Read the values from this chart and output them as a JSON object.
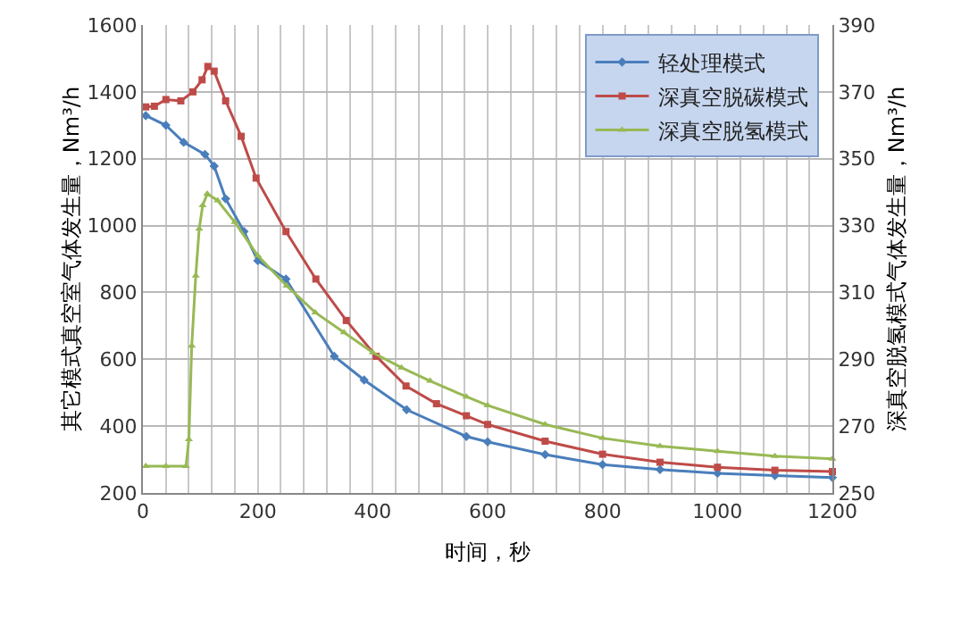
{
  "chart_data": {
    "type": "line",
    "xlabel": "时间，秒",
    "ylabel": "其它模式真空室气体发生量，Nm³/h",
    "y2label": "深真空脱氢模式气体发生量，Nm³/h",
    "xlim": [
      0,
      1200
    ],
    "xticks": [
      0,
      {
        "value": 40,
        "label": null
      },
      {
        "value": 80,
        "label": null
      },
      {
        "value": 120,
        "label": null
      },
      {
        "value": 160,
        "label": null
      },
      200,
      {
        "value": 240,
        "label": null
      },
      {
        "value": 280,
        "label": null
      },
      {
        "value": 320,
        "label": null
      },
      {
        "value": 360,
        "label": null
      },
      400,
      {
        "value": 440,
        "label": null
      },
      {
        "value": 480,
        "label": null
      },
      {
        "value": 520,
        "label": null
      },
      {
        "value": 560,
        "label": null
      },
      600,
      {
        "value": 640,
        "label": null
      },
      {
        "value": 680,
        "label": null
      },
      {
        "value": 720,
        "label": null
      },
      {
        "value": 760,
        "label": null
      },
      800,
      {
        "value": 840,
        "label": null
      },
      {
        "value": 880,
        "label": null
      },
      {
        "value": 920,
        "label": null
      },
      {
        "value": 960,
        "label": null
      },
      1000,
      {
        "value": 1040,
        "label": null
      },
      {
        "value": 1080,
        "label": null
      },
      {
        "value": 1120,
        "label": null
      },
      {
        "value": 1160,
        "label": null
      },
      1200
    ],
    "ylim": [
      200,
      1600
    ],
    "yticks": [
      200,
      400,
      600,
      800,
      1000,
      1200,
      1400,
      1600
    ],
    "y2lim": [
      250,
      390
    ],
    "y2ticks": [
      250,
      270,
      290,
      310,
      330,
      350,
      370,
      390
    ],
    "grid": true,
    "legend": "top right",
    "series": [
      {
        "name": "轻处理模式",
        "color": "#4a7ebb",
        "marker": "diamond",
        "x": [
          5,
          40,
          71,
          108,
          124,
          144,
          176,
          200,
          249,
          333,
          385,
          459,
          563,
          600,
          700,
          800,
          900,
          1000,
          1100,
          1200
        ],
        "values": [
          1329,
          1300,
          1249,
          1213,
          1178,
          1080,
          982,
          895,
          840,
          609,
          538,
          449,
          369,
          353,
          315,
          285,
          270,
          259,
          252,
          246
        ]
      },
      {
        "name": "深真空脱碳模式",
        "color": "#be4b48",
        "marker": "square",
        "x": [
          5,
          20,
          40,
          66,
          87,
          103,
          113,
          124,
          144,
          171,
          197,
          249,
          301,
          354,
          406,
          458,
          511,
          563,
          600,
          700,
          800,
          900,
          1000,
          1100,
          1200
        ],
        "values": [
          1355,
          1357,
          1377,
          1373,
          1400,
          1436,
          1476,
          1462,
          1373,
          1267,
          1142,
          982,
          840,
          716,
          609,
          520,
          467,
          431,
          405,
          355,
          316,
          292,
          277,
          268,
          264
        ]
      },
      {
        "name": "深真空脱氢模式",
        "color": "#98b954",
        "marker": "triangle",
        "axis": "y2",
        "x": [
          5,
          40,
          75,
          80,
          85,
          92,
          98,
          104,
          112,
          130,
          160,
          200,
          250,
          300,
          350,
          400,
          450,
          500,
          563,
          600,
          700,
          800,
          900,
          1000,
          1100,
          1200
        ],
        "values": [
          258,
          258,
          258,
          266,
          294,
          315,
          329,
          336,
          339.5,
          337.5,
          331,
          321,
          312,
          304,
          298,
          292,
          287.5,
          283.5,
          278.8,
          276.2,
          270.5,
          266.4,
          264,
          262.5,
          261,
          260.2
        ]
      }
    ]
  }
}
